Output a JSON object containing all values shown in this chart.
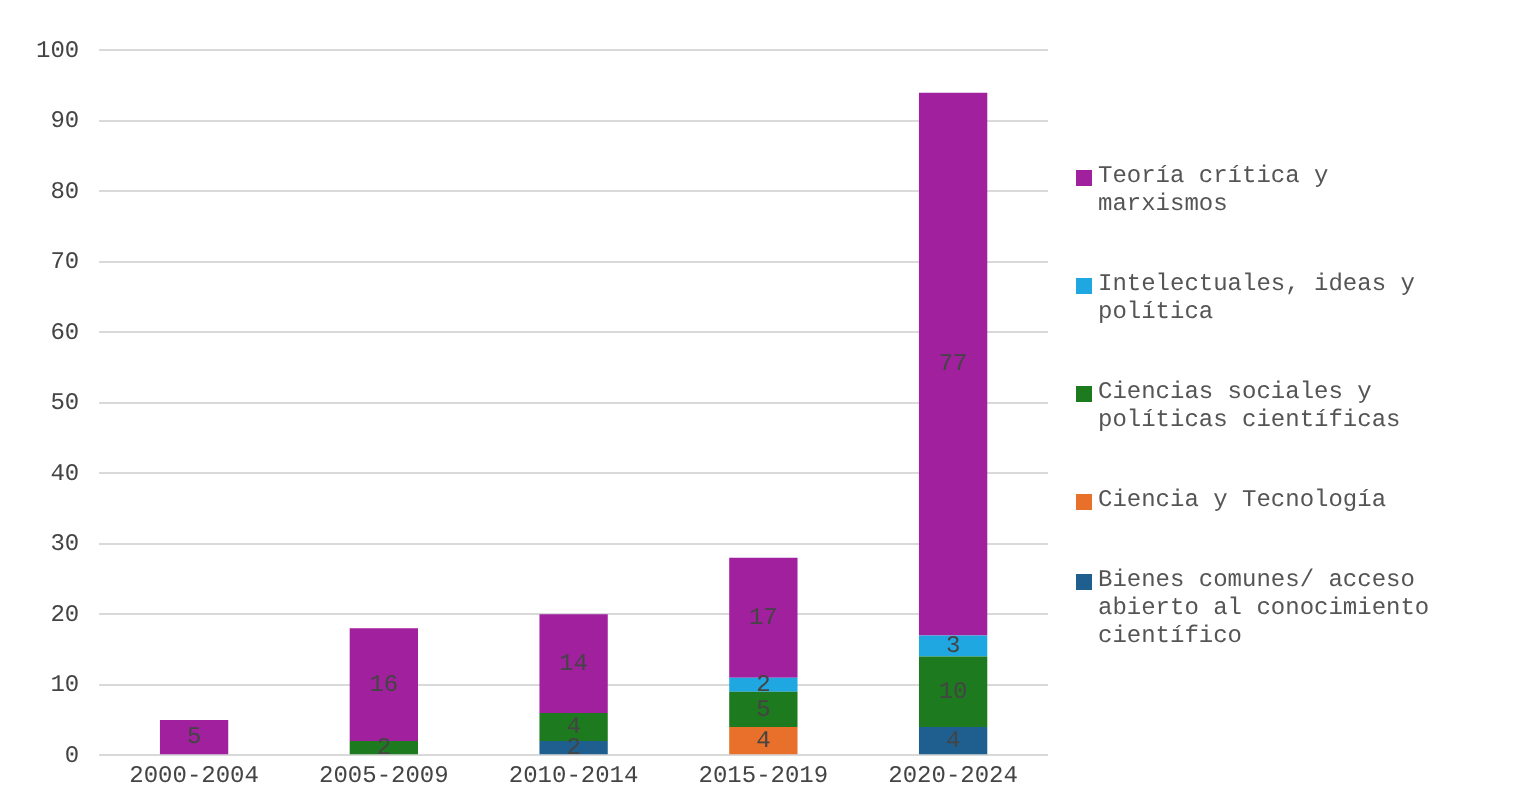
{
  "chart_data": {
    "type": "bar",
    "stacked": true,
    "categories": [
      "2000-2004",
      "2005-2009",
      "2010-2014",
      "2015-2019",
      "2020-2024"
    ],
    "series": [
      {
        "name": "Bienes comunes/ acceso abierto al conocimiento científico",
        "color": "#1f5f8f",
        "values": [
          null,
          null,
          2,
          null,
          4
        ]
      },
      {
        "name": "Ciencia y Tecnología",
        "color": "#e8702a",
        "values": [
          null,
          null,
          null,
          4,
          null
        ]
      },
      {
        "name": "Ciencias sociales y políticas científicas",
        "color": "#1e7a1e",
        "values": [
          null,
          2,
          4,
          5,
          10
        ]
      },
      {
        "name": "Intelectuales, ideas y política",
        "color": "#1ea7e0",
        "values": [
          null,
          null,
          null,
          2,
          3
        ]
      },
      {
        "name": "Teoría crítica y marxismos",
        "color": "#a0209e",
        "values": [
          5,
          16,
          14,
          17,
          77
        ]
      }
    ],
    "ylim": [
      0,
      100
    ],
    "yticks": [
      0,
      10,
      20,
      30,
      40,
      50,
      60,
      70,
      80,
      90,
      100
    ],
    "grid": "y",
    "legend": "right",
    "data_labels": true
  }
}
